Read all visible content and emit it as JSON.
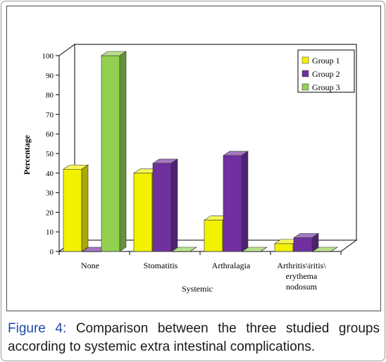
{
  "caption": {
    "label": "Figure 4:",
    "text": "Comparison between the three studied groups according to systemic extra intestinal complications."
  },
  "chart_data": {
    "type": "bar",
    "ylabel": "Percentage",
    "xlabel": "Systemic",
    "ylim": [
      0,
      100
    ],
    "yticks": [
      "0",
      "10",
      "20",
      "30",
      "40",
      "50",
      "60",
      "70",
      "80",
      "90",
      "100"
    ],
    "categories": [
      [
        "None"
      ],
      [
        "Stomatitis"
      ],
      [
        "Arthralagia"
      ],
      [
        "Arthritis\\iritis\\",
        "erythema",
        "nodosum"
      ]
    ],
    "series": [
      {
        "name": "Group 1",
        "values": [
          42,
          40,
          16,
          4
        ],
        "color": "#f2f200"
      },
      {
        "name": "Group 2",
        "values": [
          0,
          45,
          49,
          7
        ],
        "color": "#7030a0"
      },
      {
        "name": "Group 3",
        "values": [
          100,
          0,
          0,
          0
        ],
        "color": "#92d050"
      }
    ],
    "legend_position": "top-right",
    "grid": false,
    "style": "3d"
  }
}
